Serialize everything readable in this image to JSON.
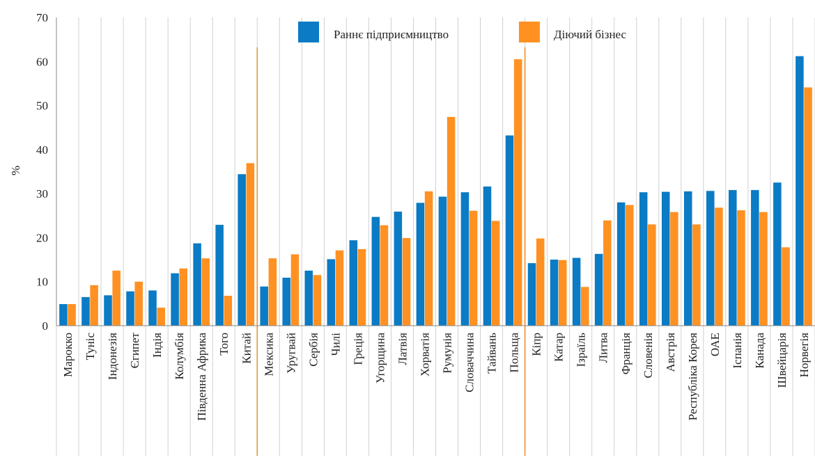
{
  "chart_data": {
    "type": "bar",
    "title": "",
    "xlabel": "",
    "ylabel": "%",
    "ylim": [
      0,
      70
    ],
    "yticks": [
      0,
      10,
      20,
      30,
      40,
      50,
      60,
      70
    ],
    "grid": "vertical lines between categories",
    "legend_position": "top-center",
    "categories": [
      "Марокко",
      "Туніс",
      "Індонезія",
      "Єгипет",
      "Індія",
      "Колумбія",
      "Південна  Африка",
      "Того",
      "Китай",
      "Мексика",
      "Уругвай",
      "Сербія",
      "Чилі",
      "Греція",
      "Угорщина",
      "Латвія",
      "Хорватія",
      "Румунія",
      "Словаччина",
      "Тайвань",
      "Польща",
      "Кіпр",
      "Катар",
      "Ізраїль",
      "Литва",
      "Франція",
      "Словенія",
      "Австрія",
      "Республіка  Корея",
      "ОАЕ",
      "Іспанія",
      "Канада",
      "Швейцарія",
      "Норвегія"
    ],
    "series": [
      {
        "name": "Раннє підприємництво",
        "color": "#0a7bc4",
        "values": [
          4.9,
          6.5,
          6.9,
          7.8,
          8.0,
          11.9,
          18.7,
          22.9,
          34.4,
          8.9,
          10.9,
          12.5,
          15.1,
          19.4,
          24.7,
          25.9,
          27.9,
          29.3,
          30.3,
          31.6,
          43.2,
          14.2,
          15.0,
          15.4,
          16.3,
          28.0,
          30.3,
          30.4,
          30.5,
          30.6,
          30.8,
          30.8,
          32.5,
          61.2
        ]
      },
      {
        "name": "Діючий бізнес",
        "color": "#ff9122",
        "values": [
          4.9,
          9.2,
          12.5,
          10.0,
          4.1,
          13.0,
          15.3,
          6.8,
          36.9,
          15.3,
          16.2,
          11.5,
          17.1,
          17.4,
          22.8,
          19.9,
          30.5,
          47.4,
          26.1,
          23.8,
          60.5,
          19.8,
          14.9,
          8.8,
          23.9,
          27.4,
          23.0,
          25.8,
          23.0,
          26.8,
          26.2,
          25.8,
          17.8,
          54.1
        ]
      }
    ],
    "group_separators_after": [
      "Китай",
      "Польща"
    ],
    "separator_color": "#f0902a"
  }
}
